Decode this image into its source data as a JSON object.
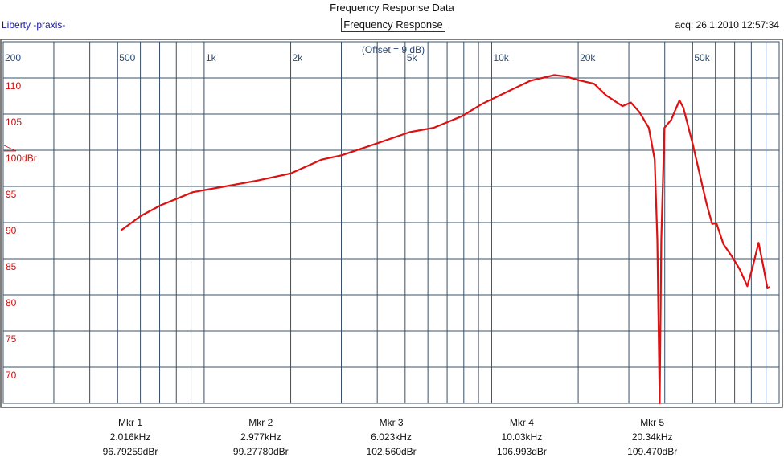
{
  "header": {
    "title": "Frequency Response Data",
    "subtitle": "Frequency Response",
    "brand": "Liberty -praxis-",
    "acq": "acq: 26.1.2010 12:57:34",
    "offset": "(Offset = 9 dB)"
  },
  "colors": {
    "trace": "#dd1111",
    "grid": "#3a5068",
    "xlabel": "#2a4a70",
    "ylabel": "#cc1111"
  },
  "chart_data": {
    "type": "line",
    "title": "Frequency Response",
    "xscale": "log",
    "xlim": [
      200,
      100000
    ],
    "ylim": [
      65,
      115
    ],
    "xticks": [
      {
        "v": 200,
        "label": "200"
      },
      {
        "v": 500,
        "label": "500"
      },
      {
        "v": 1000,
        "label": "1k"
      },
      {
        "v": 2000,
        "label": "2k"
      },
      {
        "v": 5000,
        "label": "5k"
      },
      {
        "v": 10000,
        "label": "10k"
      },
      {
        "v": 20000,
        "label": "20k"
      },
      {
        "v": 50000,
        "label": "50k"
      }
    ],
    "yticks": [
      {
        "v": 110,
        "label": "110"
      },
      {
        "v": 105,
        "label": "105"
      },
      {
        "v": 100,
        "label": "100dBr"
      },
      {
        "v": 95,
        "label": "95"
      },
      {
        "v": 90,
        "label": "90"
      },
      {
        "v": 85,
        "label": "85"
      },
      {
        "v": 80,
        "label": "80"
      },
      {
        "v": 75,
        "label": "75"
      },
      {
        "v": 70,
        "label": "70"
      }
    ],
    "series": [
      {
        "name": "Frequency Response",
        "x": [
          513,
          601,
          707,
          914,
          1182,
          1528,
          2003,
          2558,
          3004,
          3765,
          5183,
          6280,
          7870,
          9250,
          11210,
          13600,
          16500,
          18150,
          20000,
          22700,
          25000,
          28500,
          30500,
          32600,
          35200,
          36900,
          37700,
          38400,
          38900,
          39900,
          42100,
          45000,
          46400,
          50000,
          55900,
          58500,
          60500,
          64000,
          68500,
          73000,
          77500,
          81000,
          84800,
          88000,
          91000,
          93000
        ],
        "y": [
          88.9,
          90.9,
          92.4,
          94.2,
          95.0,
          95.8,
          96.8,
          98.7,
          99.3,
          100.6,
          102.5,
          103.1,
          104.7,
          106.4,
          108.0,
          109.6,
          110.4,
          110.2,
          109.7,
          109.2,
          107.6,
          106.1,
          106.6,
          105.3,
          103.1,
          98.7,
          87.6,
          65,
          87.6,
          103.1,
          104.2,
          106.9,
          105.9,
          100.9,
          92.6,
          89.8,
          89.9,
          87.0,
          85.3,
          83.5,
          81.2,
          84.0,
          87.2,
          84.0,
          80.9,
          81.1
        ]
      }
    ]
  },
  "markers": [
    {
      "name": "Mkr 1",
      "freq": "2.016kHz",
      "level": "96.79259dBr"
    },
    {
      "name": "Mkr 2",
      "freq": "2.977kHz",
      "level": "99.27780dBr"
    },
    {
      "name": "Mkr 3",
      "freq": "6.023kHz",
      "level": "102.560dBr"
    },
    {
      "name": "Mkr 4",
      "freq": "10.03kHz",
      "level": "106.993dBr"
    },
    {
      "name": "Mkr 5",
      "freq": "20.34kHz",
      "level": "109.470dBr"
    }
  ]
}
